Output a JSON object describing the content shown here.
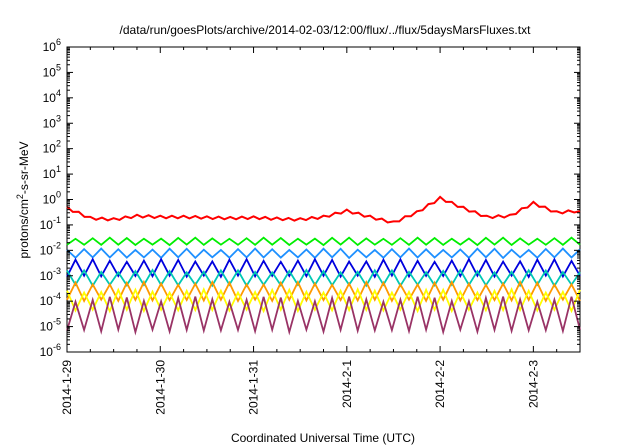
{
  "chart_data": {
    "type": "line",
    "title": "/data/run/goesPlots/archive/2014-02-03/12:00/flux/../flux/5daysMarsFluxes.txt",
    "xlabel": "Coordinated Universal Time (UTC)",
    "ylabel": "protons/cm2-s-sr-MeV",
    "ylabel_parts": {
      "before": "protons/cm",
      "sup": "2",
      "after": "-s-sr-MeV"
    },
    "y_scale": "log",
    "ylim": [
      1e-06,
      1000000.0
    ],
    "y_ticks": [
      {
        "value": 1e-06,
        "base": "10",
        "exp": "-6"
      },
      {
        "value": 1e-05,
        "base": "10",
        "exp": "-5"
      },
      {
        "value": 0.0001,
        "base": "10",
        "exp": "-4"
      },
      {
        "value": 0.001,
        "base": "10",
        "exp": "-3"
      },
      {
        "value": 0.01,
        "base": "10",
        "exp": "-2"
      },
      {
        "value": 0.1,
        "base": "10",
        "exp": "-1"
      },
      {
        "value": 1.0,
        "base": "10",
        "exp": "0"
      },
      {
        "value": 10.0,
        "base": "10",
        "exp": "1"
      },
      {
        "value": 100.0,
        "base": "10",
        "exp": "2"
      },
      {
        "value": 1000.0,
        "base": "10",
        "exp": "3"
      },
      {
        "value": 10000.0,
        "base": "10",
        "exp": "4"
      },
      {
        "value": 100000.0,
        "base": "10",
        "exp": "5"
      },
      {
        "value": 1000000.0,
        "base": "10",
        "exp": "6"
      }
    ],
    "xlim": [
      "2014-01-29 00:00",
      "2014-02-03 12:00"
    ],
    "x_ticks": [
      "2014-1-29",
      "2014-1-30",
      "2014-1-31",
      "2014-2-1",
      "2014-2-2",
      "2014-2-3"
    ],
    "grid": false,
    "legend": "none",
    "series": [
      {
        "color": "#ff0000",
        "x": [
          "2014-01-29 00:00",
          "2014-01-29 06:00",
          "2014-01-29 12:00",
          "2014-01-29 18:00",
          "2014-01-30 00:00",
          "2014-01-30 06:00",
          "2014-01-30 12:00",
          "2014-01-30 18:00",
          "2014-01-31 00:00",
          "2014-01-31 06:00",
          "2014-01-31 12:00",
          "2014-01-31 18:00",
          "2014-02-01 00:00",
          "2014-02-01 06:00",
          "2014-02-01 12:00",
          "2014-02-01 18:00",
          "2014-02-02 00:00",
          "2014-02-02 06:00",
          "2014-02-02 12:00",
          "2014-02-02 18:00",
          "2014-02-03 00:00",
          "2014-02-03 06:00",
          "2014-02-03 12:00"
        ],
        "values": [
          0.45,
          0.18,
          0.16,
          0.22,
          0.2,
          0.2,
          0.19,
          0.18,
          0.19,
          0.17,
          0.16,
          0.2,
          0.35,
          0.2,
          0.12,
          0.3,
          1.1,
          0.45,
          0.2,
          0.22,
          0.7,
          0.3,
          0.35
        ],
        "range": [
          0.12,
          1.2
        ]
      },
      {
        "color": "#00ee00",
        "range": [
          0.016,
          0.03
        ]
      },
      {
        "color": "#1e90ff",
        "range": [
          0.005,
          0.011
        ]
      },
      {
        "color": "#0000dd",
        "range": [
          0.0009,
          0.004
        ]
      },
      {
        "color": "#00c8b4",
        "range": [
          0.0004,
          0.0015
        ]
      },
      {
        "color": "#ff9900",
        "range": [
          0.0001,
          0.0005
        ]
      },
      {
        "color": "#ffff00",
        "range": [
          4e-05,
          0.00025
        ]
      },
      {
        "color": "#993366",
        "range": [
          6e-06,
          0.00012
        ]
      }
    ]
  }
}
